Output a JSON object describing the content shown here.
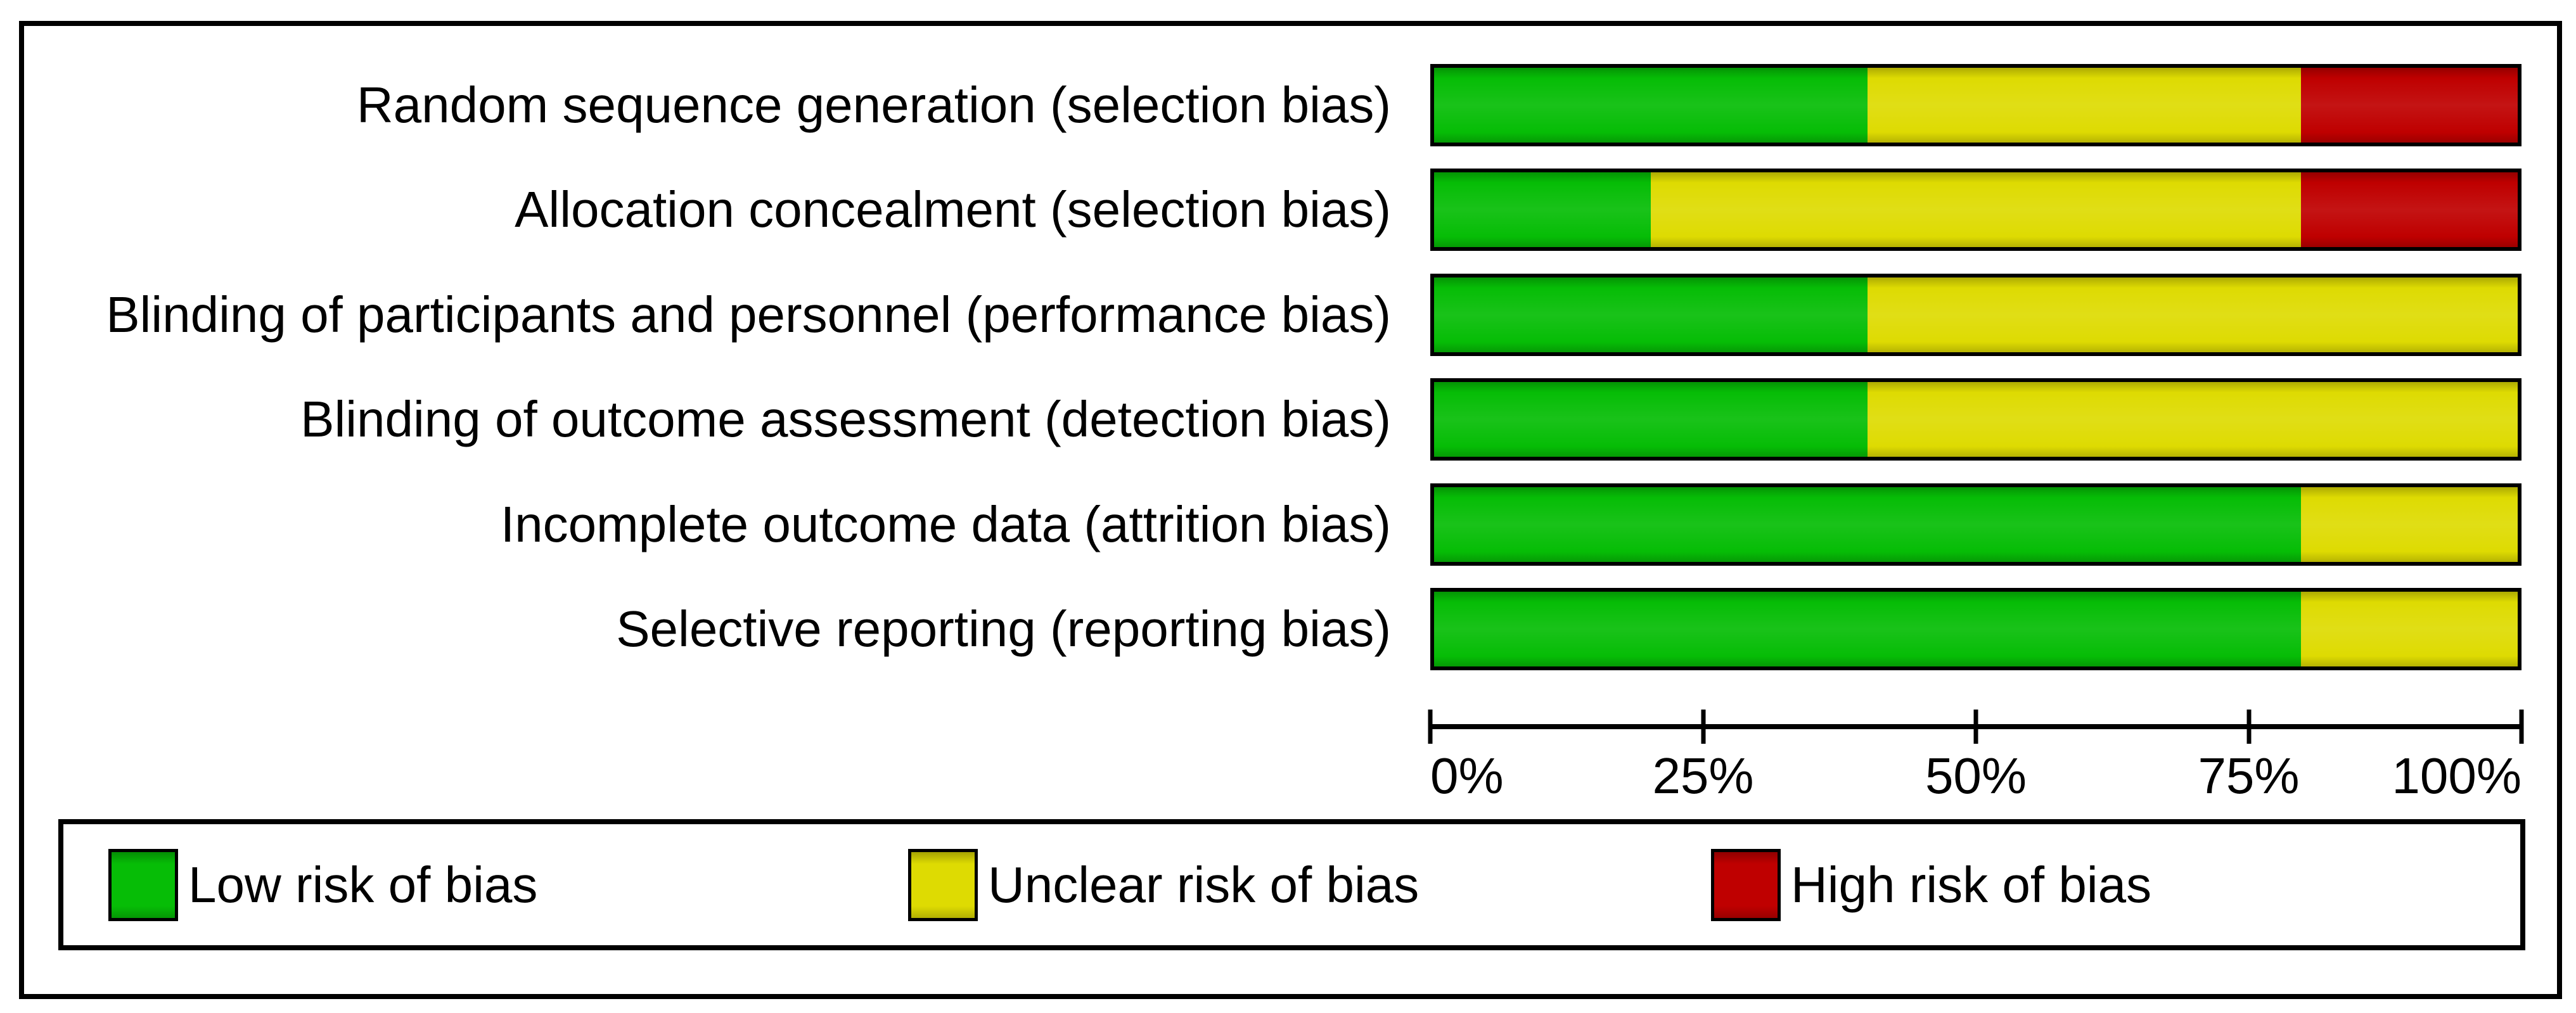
{
  "chart_data": {
    "type": "bar",
    "orientation": "horizontal",
    "stacked": true,
    "unit": "percent_of_studies",
    "title": "",
    "categories": [
      "Random sequence generation (selection bias)",
      "Allocation concealment (selection bias)",
      "Blinding of participants and personnel (performance bias)",
      "Blinding of outcome assessment (detection bias)",
      "Incomplete outcome data (attrition bias)",
      "Selective reporting (reporting bias)"
    ],
    "series": [
      {
        "key": "low",
        "name": "Low risk of bias",
        "color": "#06BD06",
        "values": [
          40,
          20,
          40,
          40,
          80,
          80
        ]
      },
      {
        "key": "unclear",
        "name": "Unclear risk of bias",
        "color": "#DEDB02",
        "values": [
          40,
          60,
          60,
          60,
          20,
          20
        ]
      },
      {
        "key": "high",
        "name": "High risk of bias",
        "color": "#BF0000",
        "values": [
          20,
          20,
          0,
          0,
          0,
          0
        ]
      }
    ],
    "x_range": [
      0,
      100
    ],
    "x_ticks": [
      "0%",
      "25%",
      "50%",
      "75%",
      "100%"
    ],
    "grid": false,
    "legend_position": "bottom"
  },
  "colors": {
    "border": "#000000",
    "background": "#FFFFFF",
    "low_risk": "#06BD06",
    "unclear_risk": "#DEDB02",
    "high_risk": "#BF0000"
  }
}
